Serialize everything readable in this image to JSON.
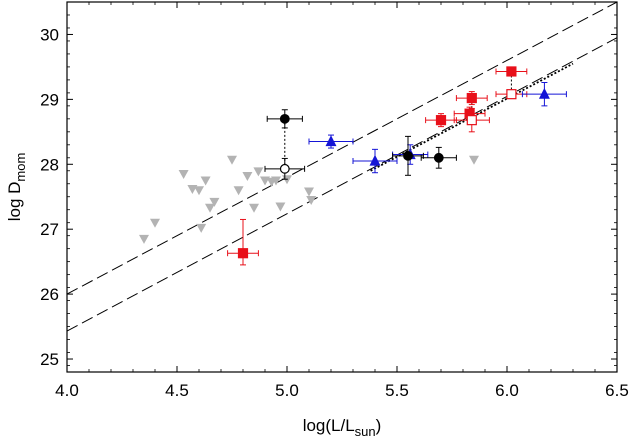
{
  "chart_data": {
    "type": "scatter",
    "xlabel": "log(L/L",
    "xlabel_sub": "sun",
    "xlabel_end": ")",
    "ylabel": "log D",
    "ylabel_sub": "mom",
    "xlim": [
      4.0,
      6.5
    ],
    "ylim": [
      24.8,
      30.5
    ],
    "xticks": [
      4.0,
      4.5,
      5.0,
      5.5,
      6.0,
      6.5
    ],
    "xtick_labels": [
      "4.0",
      "4.5",
      "5.0",
      "5.5",
      "6.0",
      "6.5"
    ],
    "yticks": [
      25,
      26,
      27,
      28,
      29,
      30
    ],
    "ytick_labels": [
      "25",
      "26",
      "27",
      "28",
      "29",
      "30"
    ],
    "grid": false,
    "lines": [
      {
        "style": "long-dash",
        "x": [
          4.0,
          6.5
        ],
        "y": [
          26.0,
          30.5
        ]
      },
      {
        "style": "long-dash",
        "x": [
          4.0,
          6.5
        ],
        "y": [
          25.43,
          29.95
        ]
      },
      {
        "style": "dotted",
        "x": [
          5.38,
          6.3
        ],
        "y": [
          27.9,
          29.55
        ]
      }
    ],
    "series": [
      {
        "marker": "triangle-down",
        "color": "#b3b3b3",
        "points": [
          [
            4.35,
            26.85
          ],
          [
            4.4,
            27.1
          ],
          [
            4.53,
            27.85
          ],
          [
            4.57,
            27.62
          ],
          [
            4.6,
            27.6
          ],
          [
            4.61,
            27.02
          ],
          [
            4.63,
            27.75
          ],
          [
            4.65,
            27.33
          ],
          [
            4.67,
            27.42
          ],
          [
            4.75,
            28.07
          ],
          [
            4.78,
            27.6
          ],
          [
            4.82,
            27.82
          ],
          [
            4.85,
            27.33
          ],
          [
            4.87,
            27.89
          ],
          [
            4.9,
            27.75
          ],
          [
            4.93,
            27.73
          ],
          [
            4.95,
            27.75
          ],
          [
            4.97,
            27.35
          ],
          [
            5.0,
            27.77
          ],
          [
            5.1,
            27.58
          ],
          [
            5.11,
            27.45
          ],
          [
            5.85,
            28.07
          ]
        ]
      },
      {
        "marker": "square",
        "color": "#e8101a",
        "filled": true,
        "points": [
          {
            "x": 4.8,
            "y": 26.63,
            "xerr": 0.07,
            "yerr_up": 0.52,
            "yerr_down": 0.18
          },
          {
            "x": 5.7,
            "y": 28.68,
            "xerr": 0.07,
            "yerr": 0.1
          },
          {
            "x": 5.83,
            "y": 28.78,
            "xerr": 0.07,
            "yerr": 0.1
          },
          {
            "x": 5.84,
            "y": 29.02,
            "xerr": 0.07,
            "yerr": 0.1
          },
          {
            "x": 6.02,
            "y": 29.43,
            "xerr": 0.07,
            "yerr": 0.05
          }
        ]
      },
      {
        "marker": "square",
        "color": "#e8101a",
        "filled": false,
        "points": [
          {
            "x": 5.84,
            "y": 28.68,
            "xerr": 0.08,
            "yerr": 0.18
          },
          {
            "x": 6.02,
            "y": 29.08,
            "xerr": 0.07,
            "yerr": 0.05
          }
        ]
      },
      {
        "marker": "triangle-up",
        "color": "#1515d6",
        "filled": true,
        "points": [
          {
            "x": 5.2,
            "y": 28.35,
            "xerr": 0.1,
            "yerr": 0.1
          },
          {
            "x": 5.4,
            "y": 28.05,
            "xerr": 0.1,
            "yerr": 0.18
          },
          {
            "x": 5.56,
            "y": 28.15,
            "xerr": 0.08,
            "yerr": 0.15
          },
          {
            "x": 6.17,
            "y": 29.08,
            "xerr": 0.1,
            "yerr": 0.18
          }
        ]
      },
      {
        "marker": "circle",
        "color": "#000000",
        "filled": true,
        "points": [
          {
            "x": 4.99,
            "y": 28.7,
            "xerr": 0.08,
            "yerr": 0.14
          },
          {
            "x": 5.55,
            "y": 28.13,
            "xerr": 0.07,
            "yerr": 0.3
          },
          {
            "x": 5.69,
            "y": 28.1,
            "xerr": 0.08,
            "yerr": 0.16
          }
        ]
      },
      {
        "marker": "circle",
        "color": "#000000",
        "filled": false,
        "points": [
          {
            "x": 4.99,
            "y": 27.93,
            "xerr": 0.09,
            "yerr": 0.16
          }
        ]
      }
    ],
    "connectors": [
      {
        "x": [
          4.99,
          4.99
        ],
        "y": [
          28.7,
          27.93
        ]
      },
      {
        "x": [
          5.84,
          5.84
        ],
        "y": [
          29.02,
          28.68
        ]
      },
      {
        "x": [
          6.02,
          6.02
        ],
        "y": [
          29.43,
          29.08
        ]
      }
    ]
  }
}
